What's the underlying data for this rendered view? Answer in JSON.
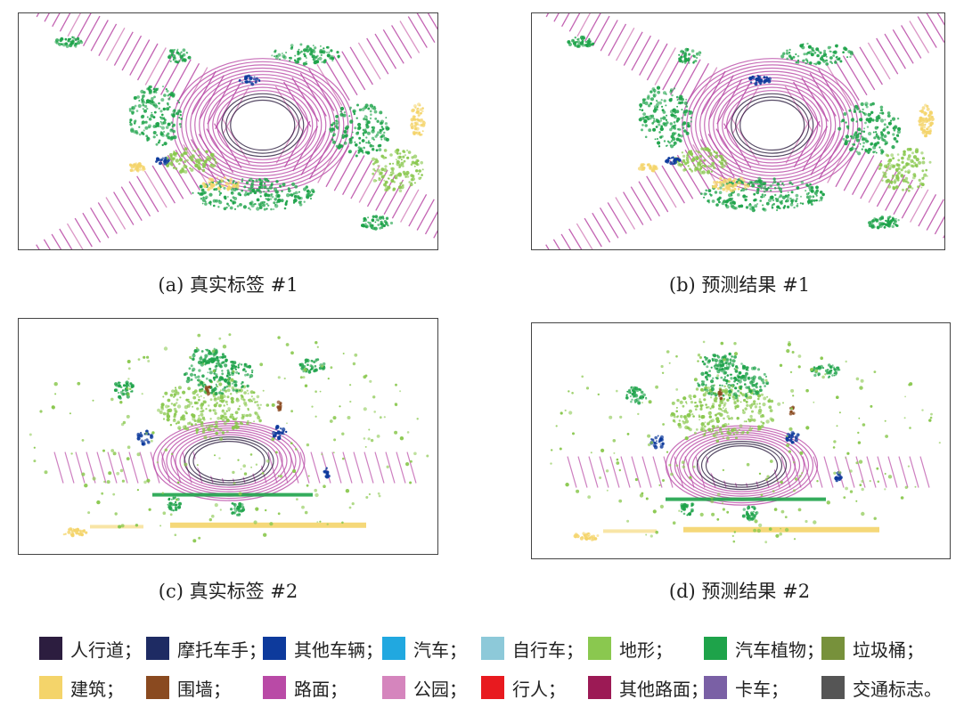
{
  "panels": [
    {
      "caption": "(a) 真实标签 #1",
      "scene": "intersection"
    },
    {
      "caption": "(b) 预测结果 #1",
      "scene": "intersection"
    },
    {
      "caption": "(c) 真实标签 #2",
      "scene": "street"
    },
    {
      "caption": "(d) 预测结果 #2",
      "scene": "street"
    }
  ],
  "legend": [
    {
      "label": "人行道；",
      "color": "#2c1d3f"
    },
    {
      "label": "摩托车手；",
      "color": "#1e2b63"
    },
    {
      "label": "其他车辆；",
      "color": "#0d3a9c"
    },
    {
      "label": "汽车；",
      "color": "#21a8e0"
    },
    {
      "label": "自行车；",
      "color": "#8dc9d9"
    },
    {
      "label": "地形；",
      "color": "#8ac84f"
    },
    {
      "label": "汽车植物；",
      "color": "#1ea34a"
    },
    {
      "label": "垃圾桶；",
      "color": "#77913b"
    },
    {
      "label": "建筑；",
      "color": "#f4d46a"
    },
    {
      "label": "围墙；",
      "color": "#8a4a20"
    },
    {
      "label": "路面；",
      "color": "#b94aa6"
    },
    {
      "label": "公园；",
      "color": "#d585bd"
    },
    {
      "label": "行人；",
      "color": "#e81a1f"
    },
    {
      "label": "其他路面；",
      "color": "#9c1a55"
    },
    {
      "label": "卡车；",
      "color": "#7a60a5"
    },
    {
      "label": "交通标志。",
      "color": "#555555"
    }
  ]
}
